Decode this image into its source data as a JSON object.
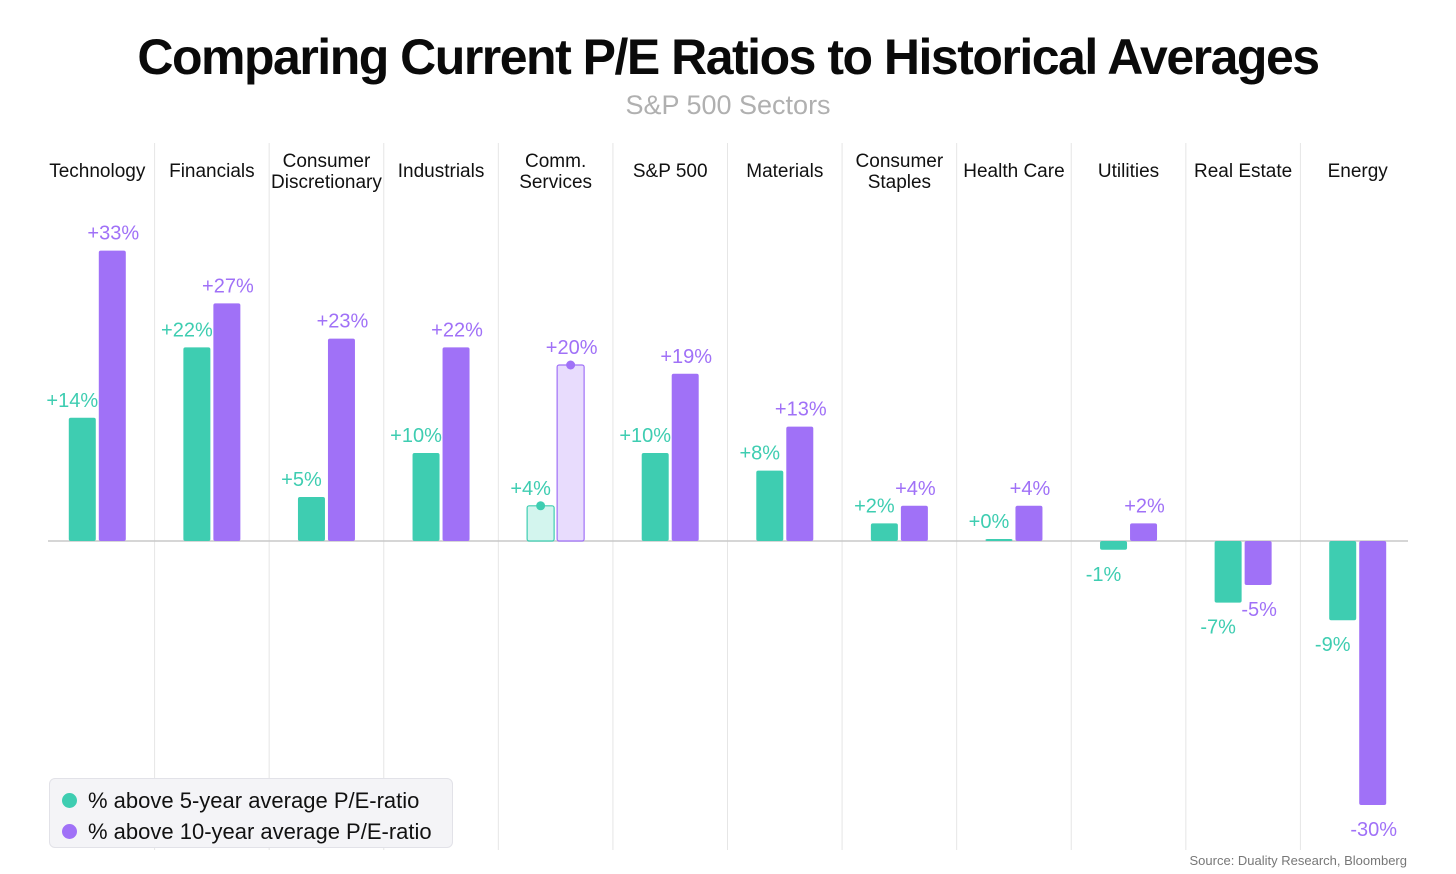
{
  "title": "Comparing Current P/E Ratios to Historical Averages",
  "subtitle": "S&P 500 Sectors",
  "source": "Source: Duality Research, Bloomberg",
  "colors": {
    "series_5yr": "#3ecdb1",
    "series_10yr": "#a071f7",
    "highlight_5yr_fill": "#d3f5ee",
    "highlight_10yr_fill": "#e8dcfd",
    "gridline": "#e6e6e6",
    "baseline": "#c8c8c8"
  },
  "legend": [
    {
      "label": "% above 5-year average P/E-ratio",
      "color": "#3ecdb1"
    },
    {
      "label": "% above 10-year average P/E-ratio",
      "color": "#a071f7"
    }
  ],
  "chart_data": {
    "type": "bar",
    "categories": [
      [
        "Technology"
      ],
      [
        "Financials"
      ],
      [
        "Consumer",
        "Discretionary"
      ],
      [
        "Industrials"
      ],
      [
        "Comm.",
        "Services"
      ],
      [
        "S&P 500"
      ],
      [
        "Materials"
      ],
      [
        "Consumer",
        "Staples"
      ],
      [
        "Health Care"
      ],
      [
        "Utilities"
      ],
      [
        "Real Estate"
      ],
      [
        "Energy"
      ]
    ],
    "highlighted_category": "Comm. Services",
    "series": [
      {
        "name": "% above 5-year average P/E-ratio",
        "values": [
          14,
          22,
          5,
          10,
          4,
          10,
          8,
          2,
          0,
          -1,
          -7,
          -9
        ],
        "labels": [
          "+14%",
          "+22%",
          "+5%",
          "+10%",
          "+4%",
          "+10%",
          "+8%",
          "+2%",
          "+0%",
          "-1%",
          "-7%",
          "-9%"
        ]
      },
      {
        "name": "% above 10-year average P/E-ratio",
        "values": [
          33,
          27,
          23,
          22,
          20,
          19,
          13,
          4,
          4,
          2,
          -5,
          -30
        ],
        "labels": [
          "+33%",
          "+27%",
          "+23%",
          "+22%",
          "+20%",
          "+19%",
          "+13%",
          "+4%",
          "+4%",
          "+2%",
          "-5%",
          "-30%"
        ]
      }
    ],
    "ylim": [
      -35,
      35
    ],
    "grid": "vertical separators",
    "legend_position": "bottom-left"
  }
}
